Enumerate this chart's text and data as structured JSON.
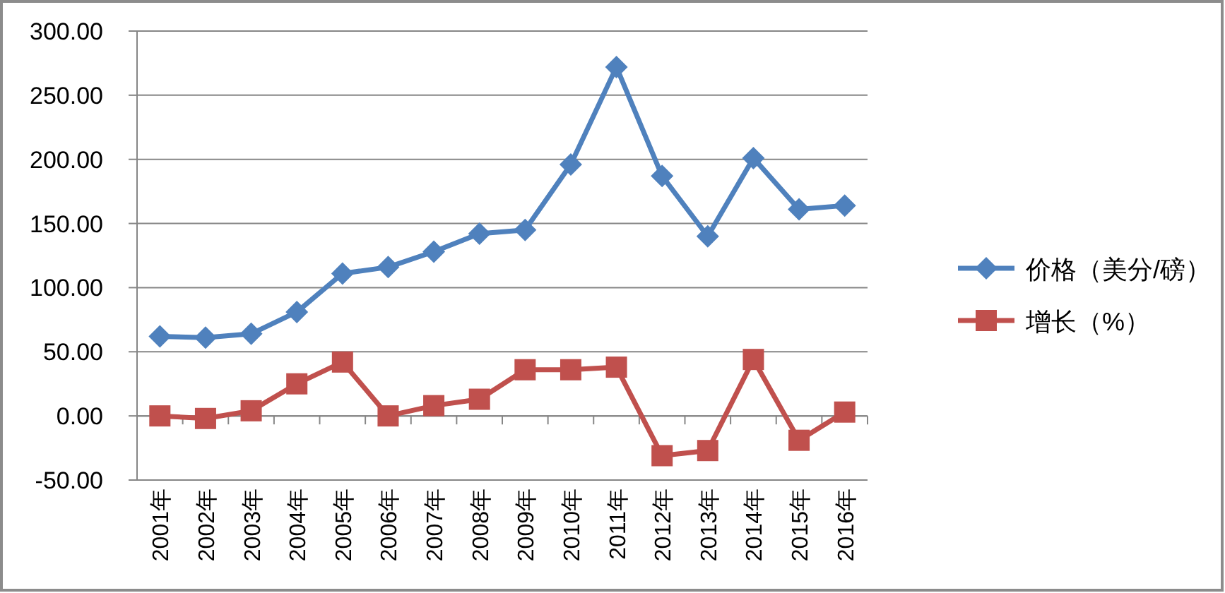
{
  "chart_data": {
    "type": "line",
    "categories": [
      "2001年",
      "2002年",
      "2003年",
      "2004年",
      "2005年",
      "2006年",
      "2007年",
      "2008年",
      "2009年",
      "2010年",
      "2011年",
      "2012年",
      "2013年",
      "2014年",
      "2015年",
      "2016年"
    ],
    "series": [
      {
        "name": "价格（美分/磅）",
        "color": "#4f81bd",
        "marker": "diamond",
        "values": [
          62,
          61,
          64,
          81,
          111,
          116,
          128,
          142,
          145,
          196,
          272,
          187,
          140,
          201,
          161,
          164
        ]
      },
      {
        "name": "增长（%）",
        "color": "#c0504d",
        "marker": "square",
        "values": [
          0,
          -2,
          4,
          25,
          42,
          0,
          8,
          13,
          36,
          36,
          38,
          -31,
          -27,
          44,
          -19,
          3
        ]
      }
    ],
    "ylim": [
      -50,
      300
    ],
    "yticks": [
      {
        "value": -50,
        "label": "-50.00"
      },
      {
        "value": 0,
        "label": "0.00"
      },
      {
        "value": 50,
        "label": "50.00"
      },
      {
        "value": 100,
        "label": "100.00"
      },
      {
        "value": 150,
        "label": "150.00"
      },
      {
        "value": 200,
        "label": "200.00"
      },
      {
        "value": 250,
        "label": "250.00"
      },
      {
        "value": 300,
        "label": "300.00"
      }
    ],
    "grid": "y",
    "legend": "right"
  }
}
